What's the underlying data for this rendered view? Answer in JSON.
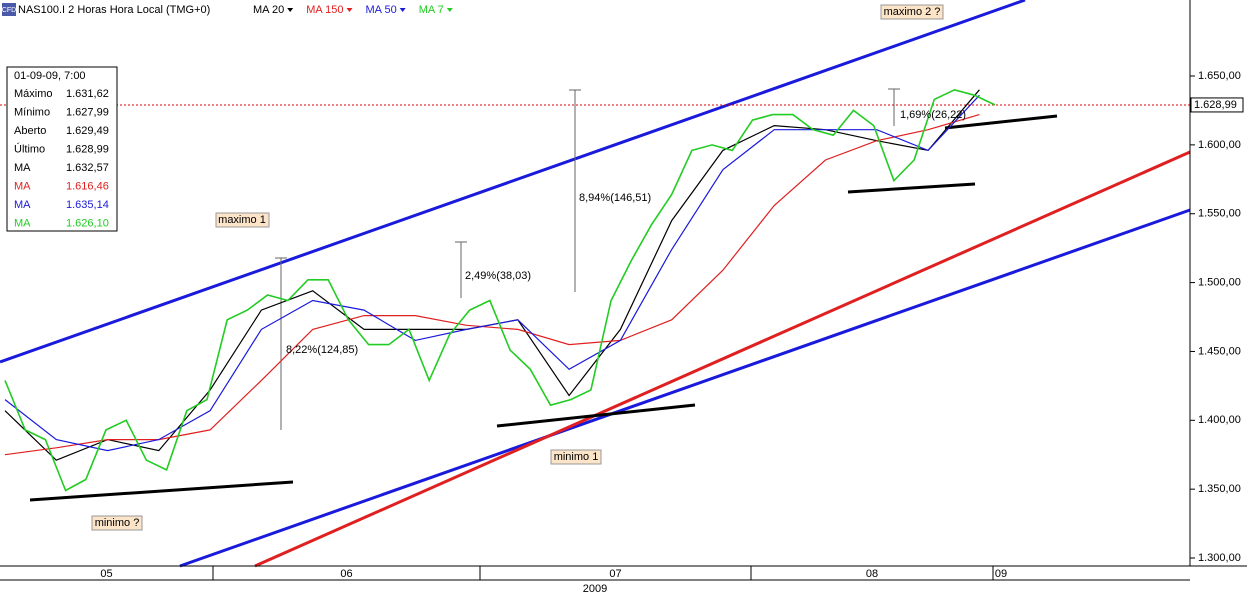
{
  "header": {
    "symbol": "NAS100.I 2 Horas Hora Local (TMG+0)",
    "badge": "CFD"
  },
  "info_box": {
    "date": "01-09-09, 7:00",
    "rows": [
      {
        "label": "Máximo",
        "value": "1.631,62",
        "color": "#000000"
      },
      {
        "label": "Mínimo",
        "value": "1.627,99",
        "color": "#000000"
      },
      {
        "label": "Aberto",
        "value": "1.629,49",
        "color": "#000000"
      },
      {
        "label": "Último",
        "value": "1.628,99",
        "color": "#000000"
      },
      {
        "label": "MA",
        "value": "1.632,57",
        "color": "#000000"
      },
      {
        "label": "MA",
        "value": "1.616,46",
        "color": "#e02020"
      },
      {
        "label": "MA",
        "value": "1.635,14",
        "color": "#1a1adc"
      },
      {
        "label": "MA",
        "value": "1.626,10",
        "color": "#22cc22"
      }
    ]
  },
  "annotations": {
    "maximo1": "maximo 1",
    "maximo2": "maximo 2 ?",
    "minimo0": "minimo ?",
    "minimo1": "minimo 1",
    "m1": "8,22%(124,85)",
    "m2": "2,49%(38,03)",
    "m3": "8,94%(146,51)",
    "m4": "1,69%(26,22)"
  },
  "chart_data": {
    "type": "line",
    "months": [
      "05",
      "06",
      "07",
      "08",
      "09"
    ],
    "year": "2009",
    "ylim": [
      1294.2,
      1705.2
    ],
    "yticks": [
      {
        "value": 1300,
        "label": "1.300,00"
      },
      {
        "value": 1350,
        "label": "1.350,00"
      },
      {
        "value": 1400,
        "label": "1.400,00"
      },
      {
        "value": 1450,
        "label": "1.450,00"
      },
      {
        "value": 1500,
        "label": "1.500,00"
      },
      {
        "value": 1550,
        "label": "1.550,00"
      },
      {
        "value": 1600,
        "label": "1.600,00"
      },
      {
        "value": 1650,
        "label": "1.650,00"
      }
    ],
    "last_price": {
      "value": 1628.99,
      "label": "1.628,99"
    },
    "series": [
      {
        "name": "MA 20",
        "color": "#000000",
        "values": [
          1407,
          1371,
          1386,
          1378,
          1422,
          1480,
          1494,
          1466,
          1466,
          1466,
          1473,
          1418,
          1466,
          1545,
          1596,
          1614,
          1611,
          1603,
          1596,
          1640
        ]
      },
      {
        "name": "MA 150",
        "color": "#e02020",
        "values": [
          1375,
          1380,
          1386,
          1386,
          1393,
          1429,
          1466,
          1476,
          1476,
          1469,
          1466,
          1455,
          1458,
          1473,
          1509,
          1556,
          1589,
          1603,
          1611,
          1622
        ]
      },
      {
        "name": "MA 50",
        "color": "#1a1adc",
        "values": [
          1415,
          1386,
          1378,
          1386,
          1407,
          1466,
          1487,
          1480,
          1458,
          1466,
          1473,
          1437,
          1458,
          1524,
          1582,
          1611,
          1611,
          1611,
          1596,
          1636
        ]
      },
      {
        "name": "MA 7",
        "color": "#22cc22",
        "values": [
          1429,
          1393,
          1386,
          1349,
          1357,
          1393,
          1400,
          1371,
          1364,
          1407,
          1415,
          1473,
          1480,
          1491,
          1487,
          1502,
          1502,
          1473,
          1455,
          1455,
          1466,
          1429,
          1462,
          1480,
          1487,
          1451,
          1437,
          1411,
          1415,
          1422,
          1487,
          1516,
          1542,
          1564,
          1596,
          1600,
          1596,
          1618,
          1622,
          1622,
          1611,
          1607,
          1625,
          1614,
          1574,
          1589,
          1633,
          1640,
          1636,
          1629
        ]
      }
    ]
  }
}
